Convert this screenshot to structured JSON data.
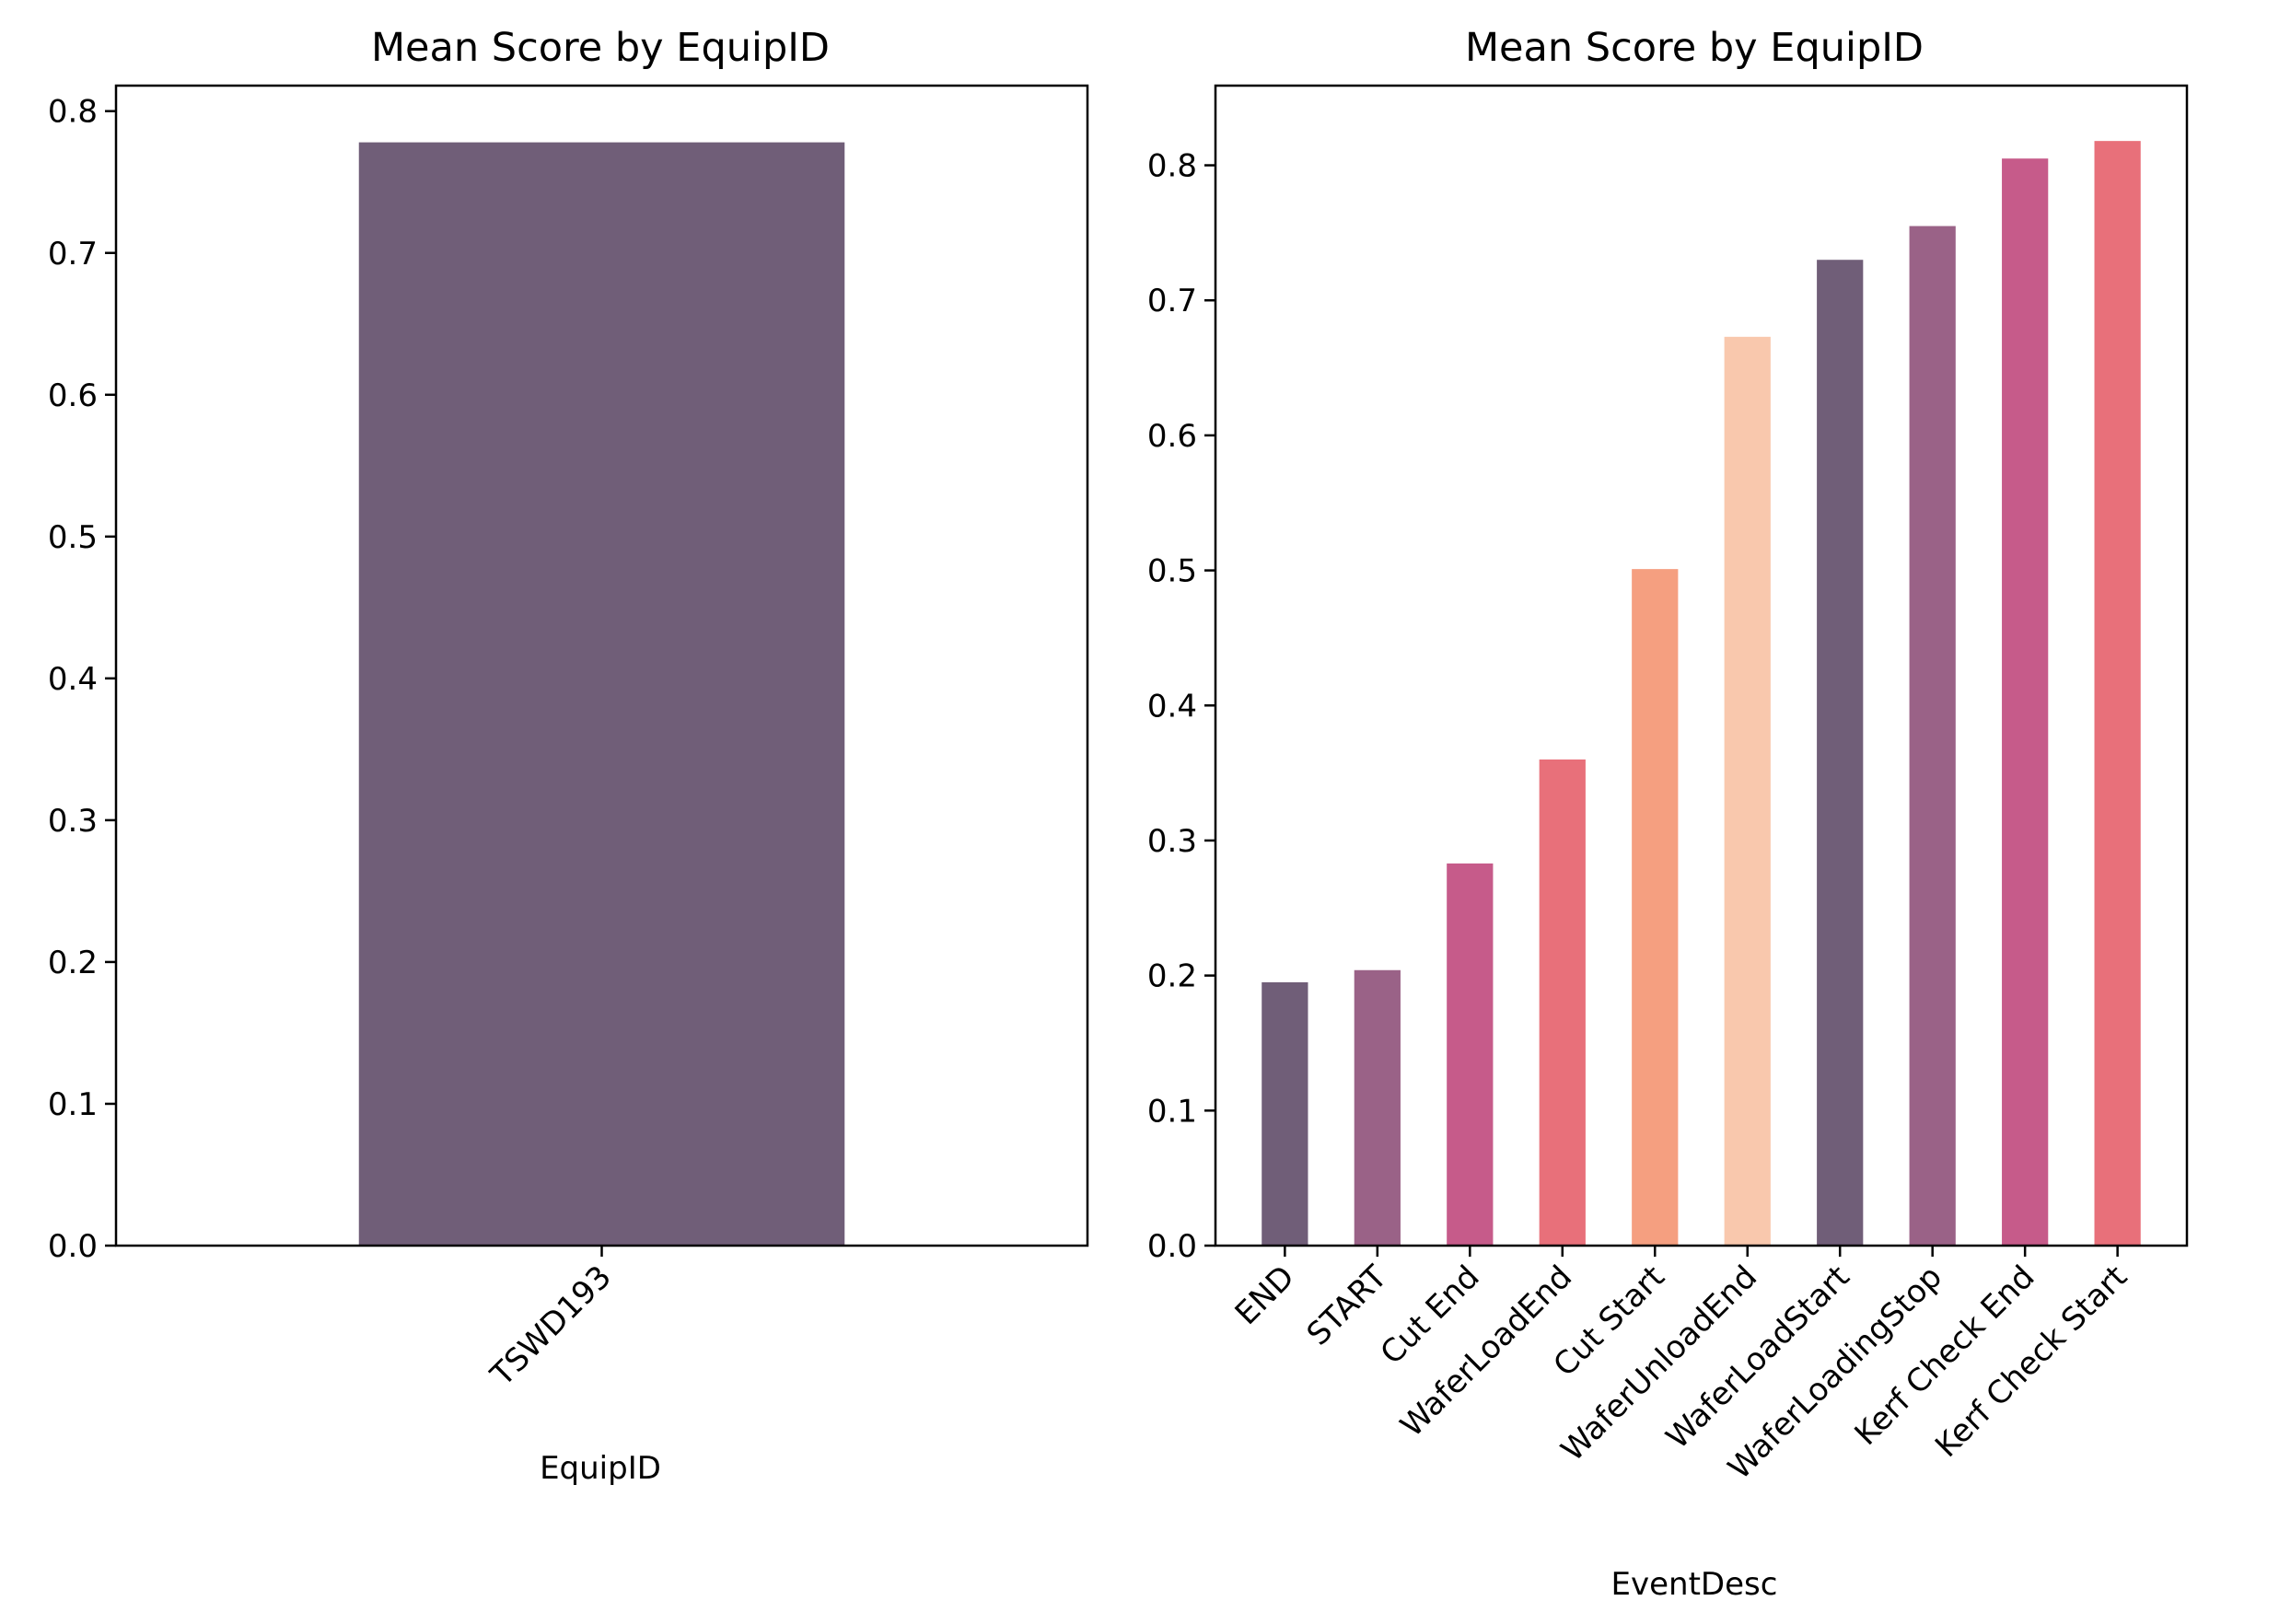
{
  "chart_data": [
    {
      "type": "bar",
      "title": "Mean Score by EquipID",
      "xlabel": "EquipID",
      "ylabel": "",
      "categories": [
        "TSWD193"
      ],
      "values": [
        0.778
      ],
      "colors": [
        "#705e78"
      ],
      "ylim": [
        0,
        0.818
      ],
      "yticks": [
        "0.0",
        "0.1",
        "0.2",
        "0.3",
        "0.4",
        "0.5",
        "0.6",
        "0.7",
        "0.8"
      ],
      "grid": false,
      "legend": "none"
    },
    {
      "type": "bar",
      "title": "Mean Score by EquipID",
      "xlabel": "EventDesc",
      "ylabel": "",
      "categories": [
        "END",
        "START",
        "Cut End",
        "WaferLoadEnd",
        "Cut Start",
        "WaferUnloadEnd",
        "WaferLoadStart",
        "WaferLoadingStop",
        "Kerf Check End",
        "Kerf Check Start"
      ],
      "values": [
        0.195,
        0.204,
        0.283,
        0.36,
        0.501,
        0.673,
        0.73,
        0.755,
        0.805,
        0.818
      ],
      "colors": [
        "#705e78",
        "#9a6287",
        "#c65b8a",
        "#e8707a",
        "#f59f80",
        "#f9c8ad",
        "#705e78",
        "#9a6287",
        "#c65b8a",
        "#e8707a"
      ],
      "ylim": [
        0,
        0.859
      ],
      "yticks": [
        "0.0",
        "0.1",
        "0.2",
        "0.3",
        "0.4",
        "0.5",
        "0.6",
        "0.7",
        "0.8"
      ],
      "grid": false,
      "legend": "none"
    }
  ]
}
